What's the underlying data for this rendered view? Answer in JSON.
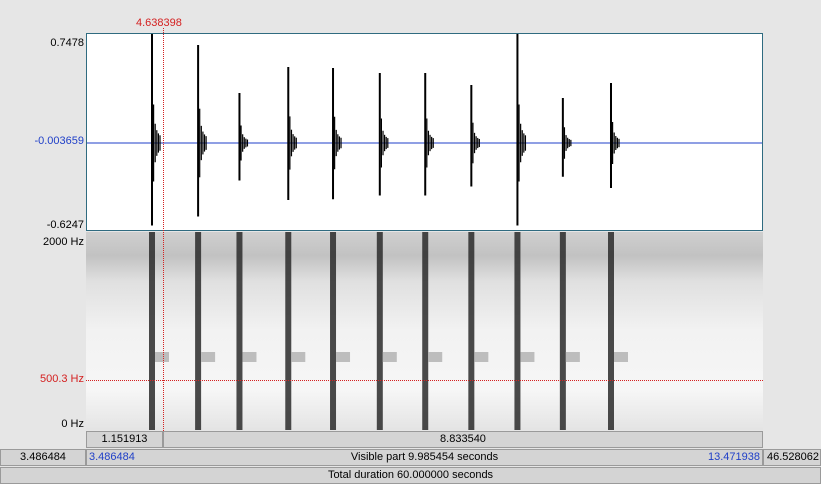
{
  "cursor": {
    "time_label": "4.638398",
    "time": 4.638398,
    "freq_label": "500.3 Hz"
  },
  "waveform": {
    "max_label": "0.7478",
    "zero_label": "-0.003659",
    "min_label": "-0.6247"
  },
  "spectrogram": {
    "top_label": "2000 Hz",
    "bottom_label": "0 Hz"
  },
  "view": {
    "start": 3.486484,
    "end": 13.471938
  },
  "pulse_times": [
    4.46,
    5.14,
    5.75,
    6.47,
    7.13,
    7.82,
    8.49,
    9.17,
    9.85,
    10.52,
    11.23
  ],
  "segments": {
    "left_label": "1.151913",
    "right_label": "8.833540"
  },
  "bottom_bar": {
    "left_total": "3.486484",
    "view_start": "3.486484",
    "visible_text": "Visible part 9.985454 seconds",
    "view_end": "13.471938",
    "right_total": "46.528062",
    "total_text": "Total duration 60.000000 seconds"
  },
  "colors": {
    "cursor": "#d42020",
    "zero_line": "#1f3fc8",
    "signal": "#000000"
  }
}
